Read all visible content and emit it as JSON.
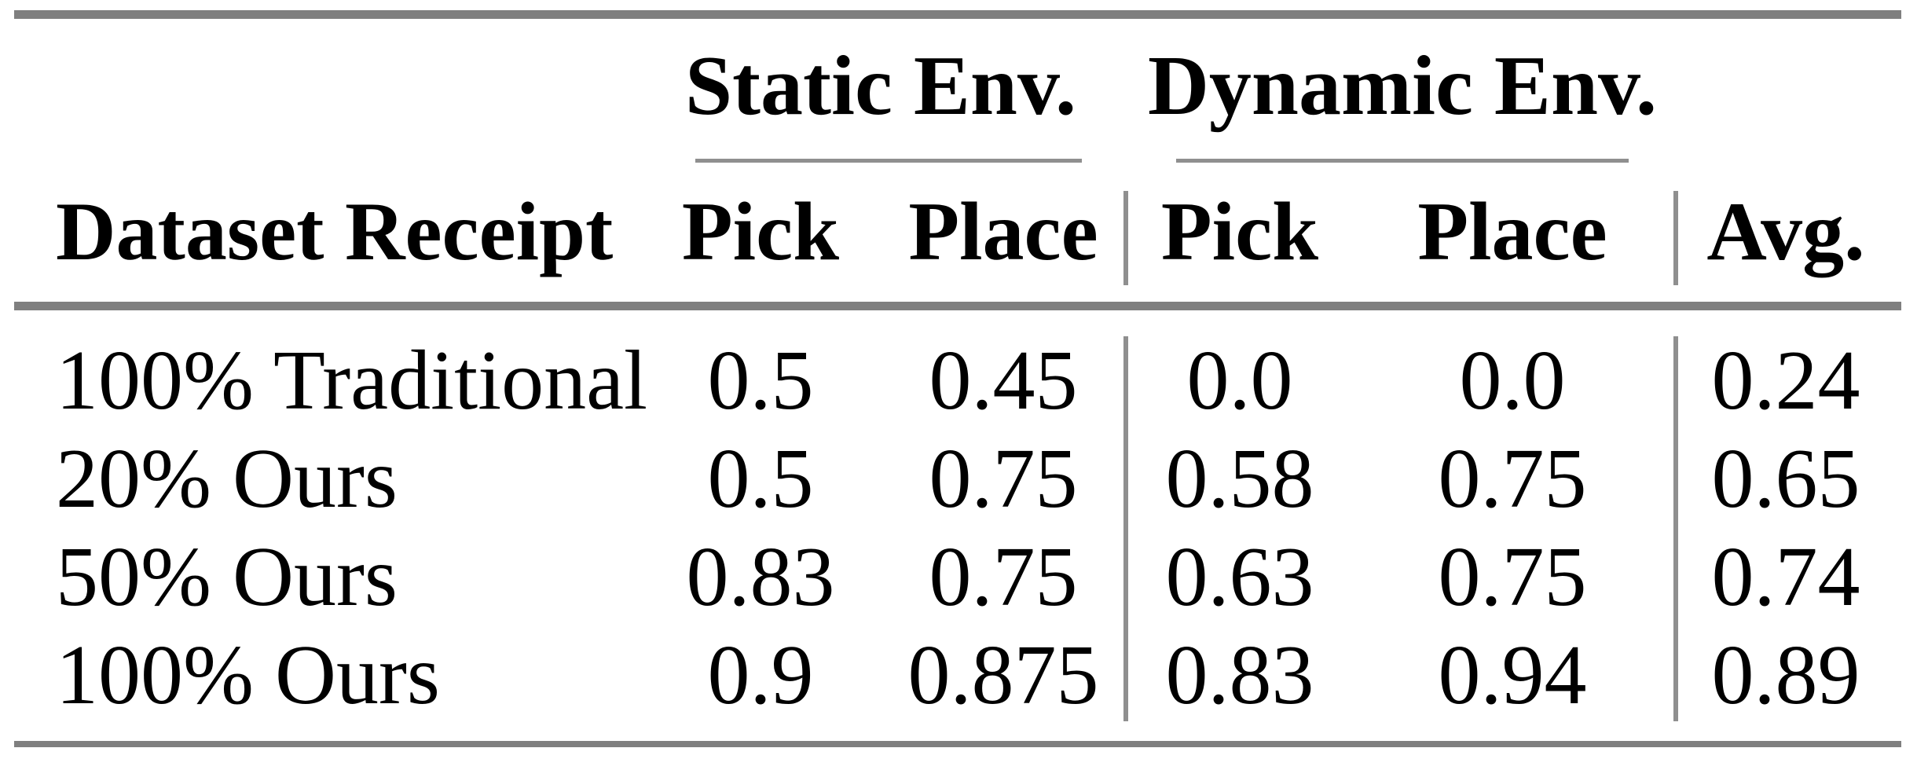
{
  "table": {
    "row_header_label": "Dataset Receipt",
    "groups": {
      "static": {
        "label": "Static Env."
      },
      "dynamic": {
        "label": "Dynamic Env."
      }
    },
    "columns": [
      "Pick",
      "Place",
      "Pick",
      "Place",
      "Avg."
    ],
    "rows": [
      {
        "label": "100% Traditional",
        "values": [
          "0.5",
          "0.45",
          "0.0",
          "0.0",
          "0.24"
        ]
      },
      {
        "label": "20% Ours",
        "values": [
          "0.5",
          "0.75",
          "0.58",
          "0.75",
          "0.65"
        ]
      },
      {
        "label": "50% Ours",
        "values": [
          "0.83",
          "0.75",
          "0.63",
          "0.75",
          "0.74"
        ]
      },
      {
        "label": "100% Ours",
        "values": [
          "0.9",
          "0.875",
          "0.83",
          "0.94",
          "0.89"
        ]
      }
    ],
    "colors": {
      "rule_heavy": "#7f7f7f",
      "rule_light": "#8f8f8f",
      "text": "#000000",
      "background": "#ffffff"
    }
  }
}
